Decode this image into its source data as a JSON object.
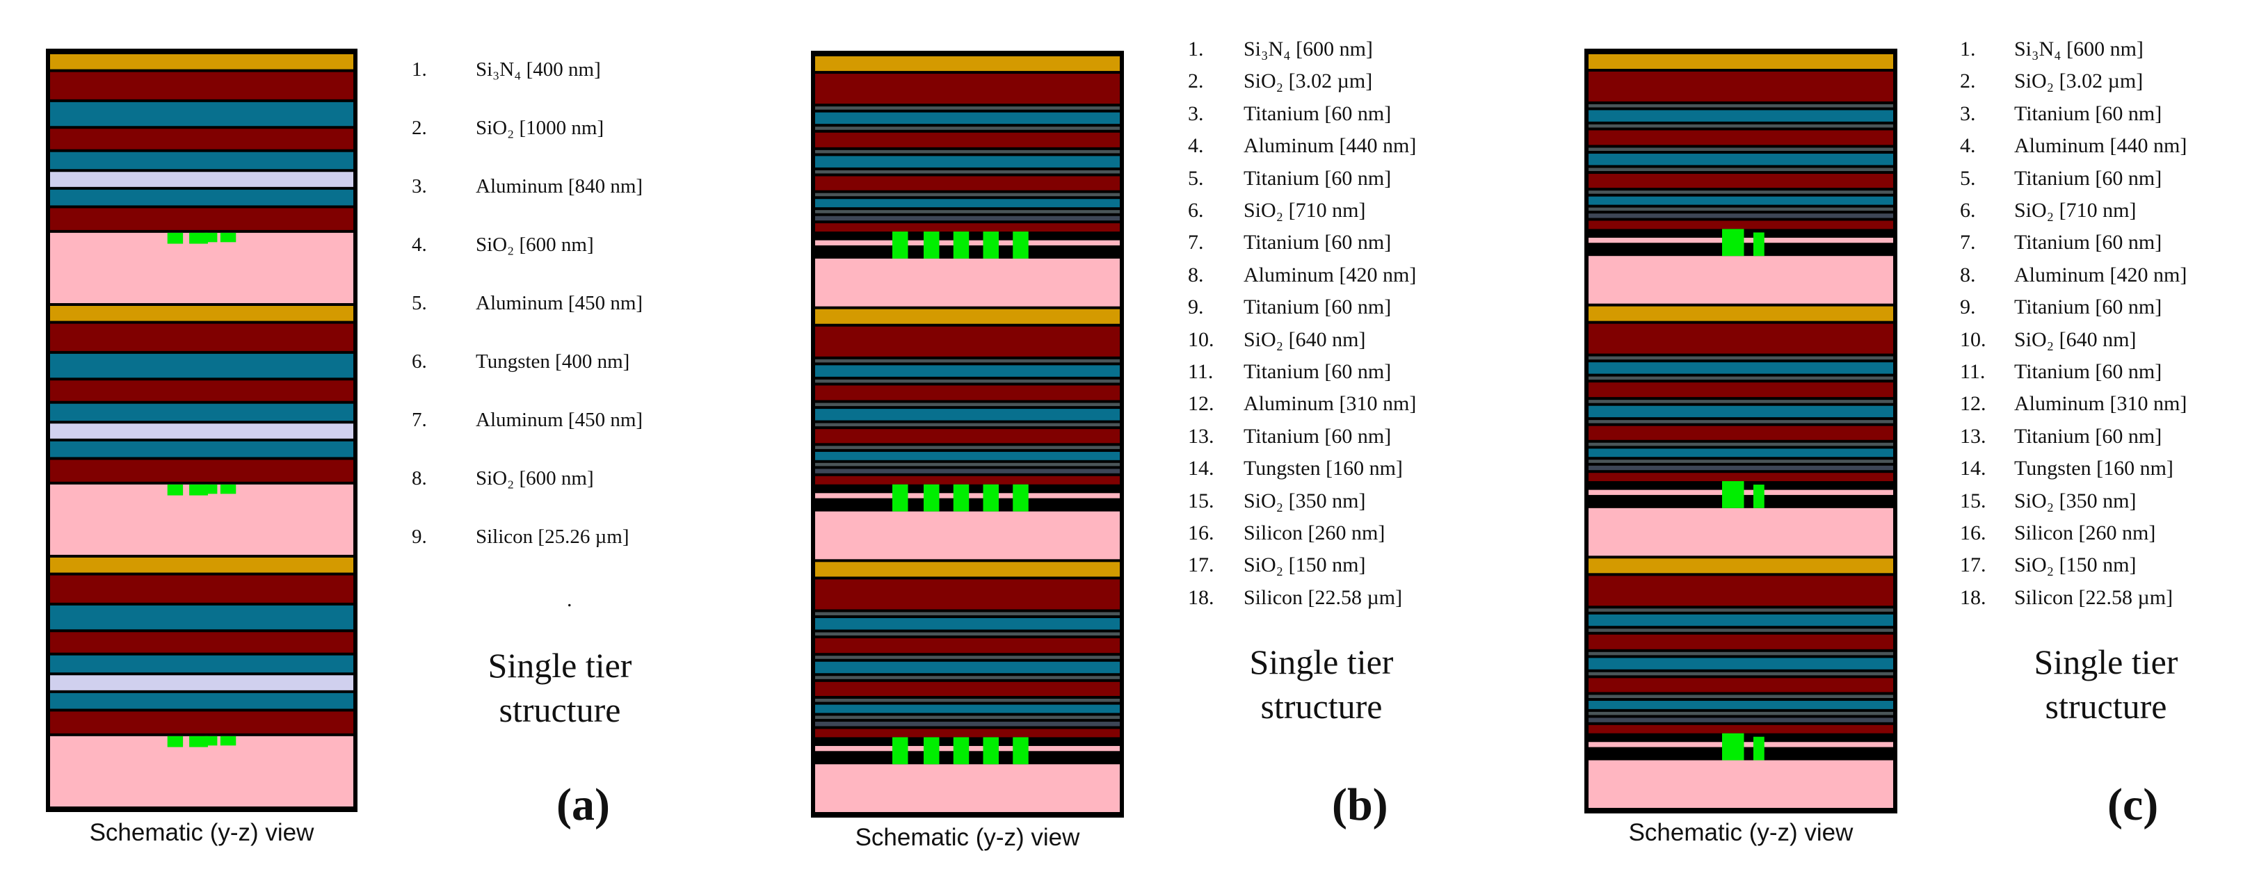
{
  "colors": {
    "Si3N4": "#d49a00",
    "SiO2": "#800000",
    "Aluminum": "#08708e",
    "Titanium": "#4a5558",
    "Tungsten": "#d0d0ee",
    "Tungsten_b": "#3d4656",
    "Silicon": "#ffb6c1",
    "waveguide": "#00ee00",
    "border": "#000000"
  },
  "panels": [
    {
      "label": "(a)",
      "view_label": "Schematic (y-z) view",
      "tier_title_line1": "Single tier",
      "tier_title_line2": "structure",
      "trailing_mark": ".",
      "tiers": 3,
      "layers": [
        {
          "num": "1.",
          "name": "Si₃N₄ [400 nm]"
        },
        {
          "num": "2.",
          "name": "SiO₂ [1000 nm]"
        },
        {
          "num": "3.",
          "name": "Aluminum [840 nm]"
        },
        {
          "num": "4.",
          "name": "SiO₂ [600 nm]"
        },
        {
          "num": "5.",
          "name": "Aluminum [450 nm]"
        },
        {
          "num": "6.",
          "name": "Tungsten [400 nm]"
        },
        {
          "num": "7.",
          "name": "Aluminum [450 nm]"
        },
        {
          "num": "8.",
          "name": "SiO₂ [600 nm]"
        },
        {
          "num": "9.",
          "name": "Silicon [25.26 µm]"
        }
      ]
    },
    {
      "label": "(b)",
      "view_label": "Schematic (y-z) view",
      "tier_title_line1": "Single tier",
      "tier_title_line2": "structure",
      "tiers": 3,
      "layers": [
        {
          "num": "1.",
          "name": "Si₃N₄ [600 nm]"
        },
        {
          "num": "2.",
          "name": "SiO₂ [3.02 µm]"
        },
        {
          "num": "3.",
          "name": "Titanium [60 nm]"
        },
        {
          "num": "4.",
          "name": "Aluminum [440 nm]"
        },
        {
          "num": "5.",
          "name": "Titanium [60 nm]"
        },
        {
          "num": "6.",
          "name": "SiO₂ [710 nm]"
        },
        {
          "num": "7.",
          "name": "Titanium [60 nm]"
        },
        {
          "num": "8.",
          "name": "Aluminum [420 nm]"
        },
        {
          "num": "9.",
          "name": "Titanium [60 nm]"
        },
        {
          "num": "10.",
          "name": "SiO₂ [640 nm]"
        },
        {
          "num": "11.",
          "name": "Titanium [60 nm]"
        },
        {
          "num": "12.",
          "name": "Aluminum [310 nm]"
        },
        {
          "num": "13.",
          "name": "Titanium [60 nm]"
        },
        {
          "num": "14.",
          "name": "Tungsten [160 nm]"
        },
        {
          "num": "15.",
          "name": "SiO₂ [350 nm]"
        },
        {
          "num": "16.",
          "name": "Silicon [260 nm]"
        },
        {
          "num": "17.",
          "name": "SiO₂ [150 nm]"
        },
        {
          "num": "18.",
          "name": "Silicon [22.58 µm]"
        }
      ]
    },
    {
      "label": "(c)",
      "view_label": "Schematic (y-z) view",
      "tier_title_line1": "Single tier",
      "tier_title_line2": "structure",
      "tiers": 3,
      "layers": [
        {
          "num": "1.",
          "name": "Si₃N₄ [600 nm]"
        },
        {
          "num": "2.",
          "name": "SiO₂ [3.02 µm]"
        },
        {
          "num": "3.",
          "name": "Titanium [60 nm]"
        },
        {
          "num": "4.",
          "name": "Aluminum [440 nm]"
        },
        {
          "num": "5.",
          "name": "Titanium [60 nm]"
        },
        {
          "num": "6.",
          "name": "SiO₂ [710 nm]"
        },
        {
          "num": "7.",
          "name": "Titanium [60 nm]"
        },
        {
          "num": "8.",
          "name": "Aluminum [420 nm]"
        },
        {
          "num": "9.",
          "name": "Titanium [60 nm]"
        },
        {
          "num": "10.",
          "name": "SiO₂ [640 nm]"
        },
        {
          "num": "11.",
          "name": "Titanium [60 nm]"
        },
        {
          "num": "12.",
          "name": "Aluminum [310 nm]"
        },
        {
          "num": "13.",
          "name": "Titanium [60 nm]"
        },
        {
          "num": "14.",
          "name": "Tungsten [160 nm]"
        },
        {
          "num": "15.",
          "name": "SiO₂ [350 nm]"
        },
        {
          "num": "16.",
          "name": "Silicon [260 nm]"
        },
        {
          "num": "17.",
          "name": "SiO₂ [150 nm]"
        },
        {
          "num": "18.",
          "name": "Silicon [22.58 µm]"
        }
      ]
    }
  ]
}
